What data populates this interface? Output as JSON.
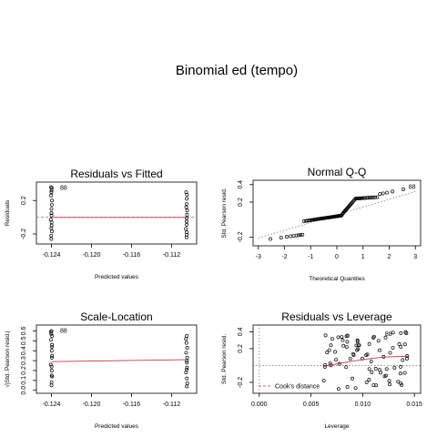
{
  "page": {
    "title": "Binomial ed (tempo)"
  },
  "chart_data": [
    {
      "type": "scatter",
      "title": "Residuals vs Fitted",
      "xlabel": "Predicted values",
      "ylabel": "Residuals",
      "xlim": [
        -0.1255,
        -0.1095
      ],
      "ylim": [
        -0.32,
        0.42
      ],
      "xticks": [
        -0.124,
        -0.12,
        -0.116,
        -0.112
      ],
      "xtick_labels": [
        "-0.124",
        "-0.120",
        "-0.116",
        "-0.112"
      ],
      "yticks": [
        -0.2,
        0.2
      ],
      "ytick_labels": [
        "-0.2",
        "0.2"
      ],
      "reference_line": {
        "y": 0.0,
        "style": "dashed",
        "color": "#7f7f7f"
      },
      "smooth_line": {
        "x": [
          -0.124,
          -0.1105
        ],
        "y": [
          -0.002,
          -0.002
        ],
        "color": "#cc3344"
      },
      "clusters": [
        {
          "x": -0.124,
          "y": [
            0.36,
            0.35,
            0.32,
            0.3,
            0.26,
            0.2,
            0.15,
            0.1,
            0.05,
            0.02,
            -0.03,
            -0.06,
            -0.1,
            -0.13,
            -0.17,
            -0.22,
            -0.26
          ]
        },
        {
          "x": -0.1105,
          "y": [
            0.3,
            0.27,
            0.22,
            0.16,
            0.12,
            0.08,
            0.03,
            -0.01,
            -0.05,
            -0.09,
            -0.14,
            -0.18,
            -0.21,
            -0.24
          ]
        }
      ],
      "point_labels": [
        {
          "x": -0.1235,
          "y": 0.35,
          "text": "88"
        }
      ]
    },
    {
      "type": "scatter",
      "title": "Normal Q-Q",
      "xlabel": "Theoretical Quantiles",
      "ylabel": "Std. Pearson resid.",
      "xlim": [
        -3.2,
        3.2
      ],
      "ylim": [
        -0.3,
        0.45
      ],
      "xticks": [
        -3,
        -2,
        -1,
        0,
        1,
        2,
        3
      ],
      "xtick_labels": [
        "-3",
        "-2",
        "-1",
        "0",
        "1",
        "2",
        "3"
      ],
      "yticks": [
        -0.2,
        0.2,
        0.4
      ],
      "ytick_labels": [
        "-0.2",
        "0.2",
        "0.4"
      ],
      "reference_line": {
        "x": [
          -3,
          3
        ],
        "y": [
          -0.21,
          0.32
        ],
        "style": "dotted",
        "color": "#7f7f7f"
      },
      "point_labels": [
        {
          "x": 2.6,
          "y": 0.37,
          "text": "88"
        }
      ]
    },
    {
      "type": "scatter",
      "title": "Scale-Location",
      "xlabel": "Predicted values",
      "ylabel": "√|Std. Pearson resid.|",
      "xlim": [
        -0.1255,
        -0.1095
      ],
      "ylim": [
        -0.03,
        0.66
      ],
      "xticks": [
        -0.124,
        -0.12,
        -0.116,
        -0.112
      ],
      "xtick_labels": [
        "-0.124",
        "-0.120",
        "-0.116",
        "-0.112"
      ],
      "yticks": [
        0.0,
        0.1,
        0.2,
        0.3,
        0.4,
        0.5,
        0.6
      ],
      "ytick_labels": [
        "0.0",
        "0.1",
        "0.2",
        "0.3",
        "0.4",
        "0.5",
        "0.6"
      ],
      "smooth_line": {
        "x": [
          -0.124,
          -0.1105
        ],
        "y": [
          0.29,
          0.31
        ],
        "color": "#cc3344"
      },
      "clusters": [
        {
          "x": -0.124,
          "y": [
            0.6,
            0.59,
            0.57,
            0.55,
            0.51,
            0.46,
            0.4,
            0.33,
            0.26,
            0.2,
            0.14,
            0.08,
            0.05,
            0.15,
            0.24,
            0.35,
            0.44
          ]
        },
        {
          "x": -0.1105,
          "y": [
            0.55,
            0.52,
            0.48,
            0.43,
            0.38,
            0.33,
            0.28,
            0.23,
            0.18,
            0.12,
            0.07,
            0.04,
            0.21,
            0.3
          ]
        }
      ],
      "point_labels": [
        {
          "x": -0.1235,
          "y": 0.6,
          "text": "88"
        }
      ]
    },
    {
      "type": "scatter",
      "title": "Residuals vs Leverage",
      "xlabel": "Leverage",
      "ylabel": "Std. Pearson resid.",
      "xlim": [
        -0.0006,
        0.0156
      ],
      "ylim": [
        -0.33,
        0.48
      ],
      "xticks": [
        0.0,
        0.005,
        0.01,
        0.015
      ],
      "xtick_labels": [
        "0.000",
        "0.005",
        "0.010",
        "0.015"
      ],
      "yticks": [
        -0.2,
        0.2,
        0.4
      ],
      "ytick_labels": [
        "-0.2",
        "0.2",
        "0.4"
      ],
      "reference_lines": [
        {
          "y": 0.0,
          "style": "dotted",
          "color": "#7f7f7f"
        },
        {
          "x": 0.0,
          "style": "dotted",
          "color": "#7f7f7f"
        }
      ],
      "smooth_line": {
        "x": [
          0.0062,
          0.008,
          0.01,
          0.012,
          0.0145
        ],
        "y": [
          -0.01,
          0.03,
          0.07,
          0.1,
          0.11
        ],
        "color": "#cc3344"
      },
      "legend": {
        "position": "bottom-left",
        "entries": [
          "Cook's distance"
        ]
      },
      "point_labels": [
        {
          "x": 0.0118,
          "y": 0.37,
          "text": "88"
        }
      ]
    }
  ]
}
